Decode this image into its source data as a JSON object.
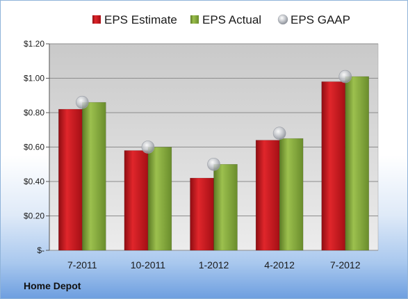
{
  "chart_data": {
    "type": "bar",
    "categories": [
      "7-2011",
      "10-2011",
      "1-2012",
      "4-2012",
      "7-2012"
    ],
    "series": [
      {
        "name": "EPS Estimate",
        "values": [
          0.82,
          0.58,
          0.42,
          0.64,
          0.98
        ],
        "color": "#c8181e",
        "kind": "bar"
      },
      {
        "name": "EPS Actual",
        "values": [
          0.86,
          0.6,
          0.5,
          0.65,
          1.01
        ],
        "color": "#7ea23c",
        "kind": "bar"
      },
      {
        "name": "EPS GAAP",
        "values": [
          0.86,
          0.6,
          0.5,
          0.68,
          1.01
        ],
        "color": "#b8bcc4",
        "kind": "marker"
      }
    ],
    "ylim": [
      0,
      1.2
    ],
    "yticks": [
      {
        "value": 0,
        "label": "$-"
      },
      {
        "value": 0.2,
        "label": "$0.20"
      },
      {
        "value": 0.4,
        "label": "$0.40"
      },
      {
        "value": 0.6,
        "label": "$0.60"
      },
      {
        "value": 0.8,
        "label": "$0.80"
      },
      {
        "value": 1.0,
        "label": "$1.00"
      },
      {
        "value": 1.2,
        "label": "$1.20"
      }
    ],
    "grid": true,
    "legend_position": "top"
  },
  "caption": "Home Depot"
}
